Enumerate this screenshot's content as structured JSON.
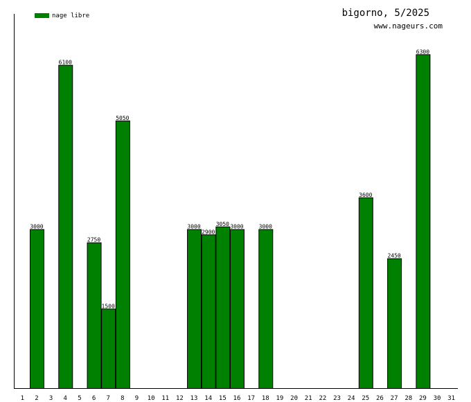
{
  "chart_data": {
    "type": "bar",
    "title": "bigorno, 5/2025",
    "subtitle": "www.nageurs.com",
    "legend": [
      {
        "name": "nage libre",
        "color": "#008000"
      }
    ],
    "legend_position": "top-left",
    "xlabel": "",
    "ylabel": "",
    "categories": [
      "1",
      "2",
      "3",
      "4",
      "5",
      "6",
      "7",
      "8",
      "9",
      "10",
      "11",
      "12",
      "13",
      "14",
      "15",
      "16",
      "17",
      "18",
      "19",
      "20",
      "21",
      "22",
      "23",
      "24",
      "25",
      "26",
      "27",
      "28",
      "29",
      "30",
      "31"
    ],
    "series": [
      {
        "name": "nage libre",
        "color": "#008000",
        "values": [
          0,
          3000,
          0,
          6100,
          0,
          2750,
          1500,
          5050,
          0,
          0,
          0,
          0,
          3000,
          2900,
          3050,
          3000,
          0,
          3000,
          0,
          0,
          0,
          0,
          0,
          0,
          3600,
          0,
          2450,
          0,
          6300,
          0,
          0
        ]
      }
    ],
    "value_labels": [
      "",
      "3000",
      "",
      "6100",
      "",
      "2750",
      "1500",
      "5050",
      "",
      "",
      "",
      "",
      "3000",
      "2900",
      "3050",
      "3000",
      "",
      "3000",
      "",
      "",
      "",
      "",
      "",
      "",
      "3600",
      "",
      "2450",
      "",
      "6300",
      "",
      ""
    ],
    "ylim": [
      0,
      7063
    ],
    "grid": false
  }
}
